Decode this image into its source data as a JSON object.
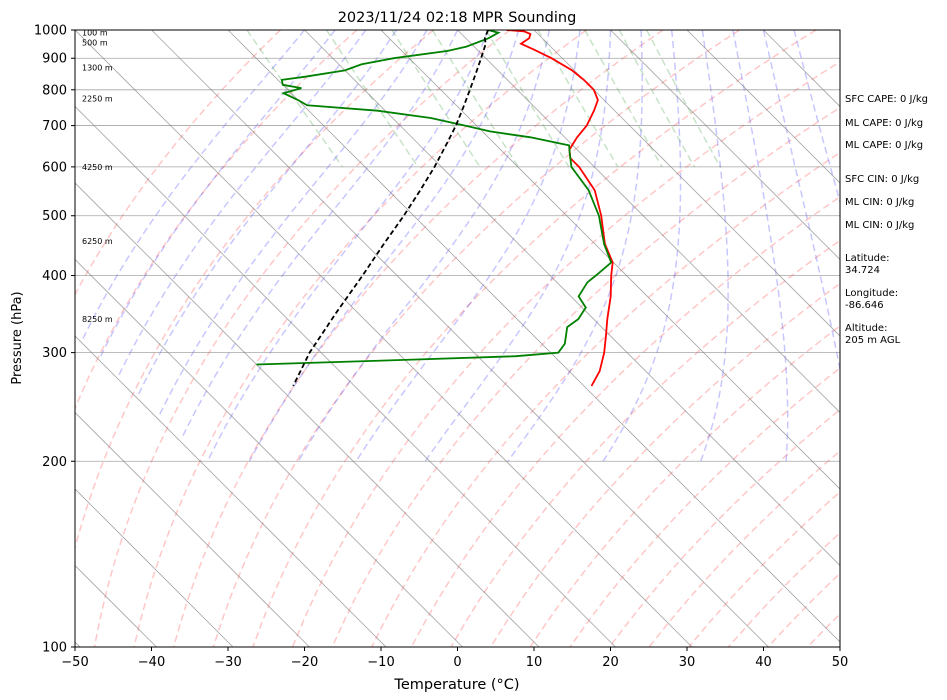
{
  "chart_data": {
    "type": "line",
    "title": "2023/11/24 02:18 MPR Sounding",
    "xlabel": "Temperature (°C)",
    "ylabel": "Pressure (hPa)",
    "xlim": [
      -50,
      50
    ],
    "ylim": [
      1000,
      100
    ],
    "y_scale": "log",
    "grid": true,
    "x_ticks": [
      -50,
      -40,
      -30,
      -20,
      -10,
      0,
      10,
      20,
      30,
      40,
      50
    ],
    "y_ticks": [
      1000,
      900,
      800,
      700,
      600,
      500,
      400,
      300,
      200,
      100
    ],
    "skew": 45,
    "height_labels": [
      {
        "label": "100 m",
        "p": 990
      },
      {
        "label": "500 m",
        "p": 955
      },
      {
        "label": "1300 m",
        "p": 870
      },
      {
        "label": "2250 m",
        "p": 775
      },
      {
        "label": "4250 m",
        "p": 600
      },
      {
        "label": "6250 m",
        "p": 455
      },
      {
        "label": "8250 m",
        "p": 340
      }
    ],
    "series": [
      {
        "key": "temperature",
        "color": "#ff0000",
        "points": [
          [
            1000,
            6.4
          ],
          [
            995,
            8.5
          ],
          [
            985,
            9.0
          ],
          [
            970,
            8.3
          ],
          [
            950,
            6.5
          ],
          [
            930,
            7.4
          ],
          [
            900,
            8.6
          ],
          [
            860,
            9.7
          ],
          [
            830,
            10.0
          ],
          [
            800,
            10.0
          ],
          [
            770,
            9.2
          ],
          [
            740,
            7.3
          ],
          [
            700,
            4.4
          ],
          [
            670,
            1.6
          ],
          [
            640,
            -1.0
          ],
          [
            620,
            -2.0
          ],
          [
            600,
            -2.0
          ],
          [
            550,
            -3.0
          ],
          [
            500,
            -5.5
          ],
          [
            450,
            -8.7
          ],
          [
            420,
            -10.1
          ],
          [
            400,
            -12.0
          ],
          [
            370,
            -14.8
          ],
          [
            340,
            -18.2
          ],
          [
            320,
            -20.5
          ],
          [
            300,
            -23.0
          ],
          [
            280,
            -26.0
          ],
          [
            265,
            -29.0
          ]
        ]
      },
      {
        "key": "dewpoint",
        "color": "#008000",
        "points": [
          [
            1000,
            4.0
          ],
          [
            990,
            5.0
          ],
          [
            970,
            3.0
          ],
          [
            940,
            -1.0
          ],
          [
            925,
            -4.0
          ],
          [
            900,
            -12.0
          ],
          [
            880,
            -17.0
          ],
          [
            860,
            -20.0
          ],
          [
            840,
            -26.0
          ],
          [
            830,
            -29.5
          ],
          [
            815,
            -30.0
          ],
          [
            805,
            -28.0
          ],
          [
            790,
            -31.0
          ],
          [
            770,
            -30.0
          ],
          [
            755,
            -29.5
          ],
          [
            740,
            -21.0
          ],
          [
            720,
            -15.0
          ],
          [
            700,
            -11.5
          ],
          [
            685,
            -9.0
          ],
          [
            670,
            -4.5
          ],
          [
            650,
            -0.5
          ],
          [
            630,
            -1.5
          ],
          [
            600,
            -3.0
          ],
          [
            550,
            -3.8
          ],
          [
            500,
            -5.8
          ],
          [
            450,
            -8.8
          ],
          [
            420,
            -10.3
          ],
          [
            400,
            -14.0
          ],
          [
            390,
            -16.0
          ],
          [
            370,
            -19.0
          ],
          [
            355,
            -19.5
          ],
          [
            340,
            -22.0
          ],
          [
            330,
            -24.5
          ],
          [
            310,
            -27.0
          ],
          [
            300,
            -29.0
          ],
          [
            296,
            -35.0
          ],
          [
            292,
            -50.0
          ],
          [
            287,
            -70.0
          ]
        ]
      },
      {
        "key": "parcel",
        "color": "#000000",
        "points": [
          [
            1000,
            4.0
          ],
          [
            970,
            2.5
          ],
          [
            950,
            1.9
          ],
          [
            900,
            -0.6
          ],
          [
            850,
            -3.3
          ],
          [
            800,
            -6.2
          ],
          [
            750,
            -9.3
          ],
          [
            700,
            -12.7
          ],
          [
            650,
            -16.6
          ],
          [
            600,
            -20.9
          ],
          [
            550,
            -25.8
          ],
          [
            500,
            -31.3
          ],
          [
            450,
            -37.6
          ],
          [
            400,
            -44.5
          ],
          [
            350,
            -52.5
          ],
          [
            300,
            -61.5
          ],
          [
            265,
            -68.0
          ]
        ]
      }
    ]
  },
  "stats": [
    "SFC CAPE: 0 J/kg",
    "ML CAPE: 0 J/kg",
    "ML CAPE: 0 J/kg",
    "SFC CIN: 0 J/kg",
    "ML CIN: 0 J/kg",
    "ML CIN: 0 J/kg",
    "Latitude:",
    "34.724",
    "Longitude:",
    "-86.646",
    "Altitude:",
    "205 m AGL"
  ]
}
